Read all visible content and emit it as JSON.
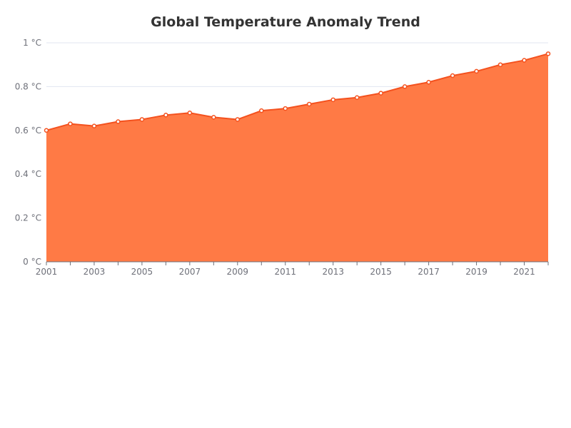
{
  "chart_data": {
    "type": "area",
    "title": "Global Temperature Anomaly Trend",
    "xlabel": "",
    "ylabel": "",
    "x": [
      2001,
      2002,
      2003,
      2004,
      2005,
      2006,
      2007,
      2008,
      2009,
      2010,
      2011,
      2012,
      2013,
      2014,
      2015,
      2016,
      2017,
      2018,
      2019,
      2020,
      2021,
      2022
    ],
    "series": [
      {
        "values": [
          0.6,
          0.63,
          0.62,
          0.64,
          0.65,
          0.67,
          0.68,
          0.66,
          0.65,
          0.69,
          0.7,
          0.72,
          0.74,
          0.75,
          0.77,
          0.8,
          0.82,
          0.85,
          0.87,
          0.9,
          0.92,
          0.95
        ]
      }
    ],
    "ylim": [
      0,
      1
    ],
    "y_ticks": [
      0,
      0.2,
      0.4,
      0.6,
      0.8,
      1
    ],
    "y_tick_labels": [
      "0 °C",
      "0.2 °C",
      "0.4 °C",
      "0.6 °C",
      "0.8 °C",
      "1 °C"
    ],
    "x_tick_labels": [
      "2001",
      "2003",
      "2005",
      "2007",
      "2009",
      "2011",
      "2013",
      "2015",
      "2017",
      "2019",
      "2021"
    ],
    "grid": true,
    "legend": "none",
    "colors": {
      "line": "#f4511e",
      "area": "#ff7a45",
      "marker_fill": "#ffffff",
      "grid": "#e0e6f1",
      "axis": "#6e7079",
      "title": "#333333"
    }
  }
}
